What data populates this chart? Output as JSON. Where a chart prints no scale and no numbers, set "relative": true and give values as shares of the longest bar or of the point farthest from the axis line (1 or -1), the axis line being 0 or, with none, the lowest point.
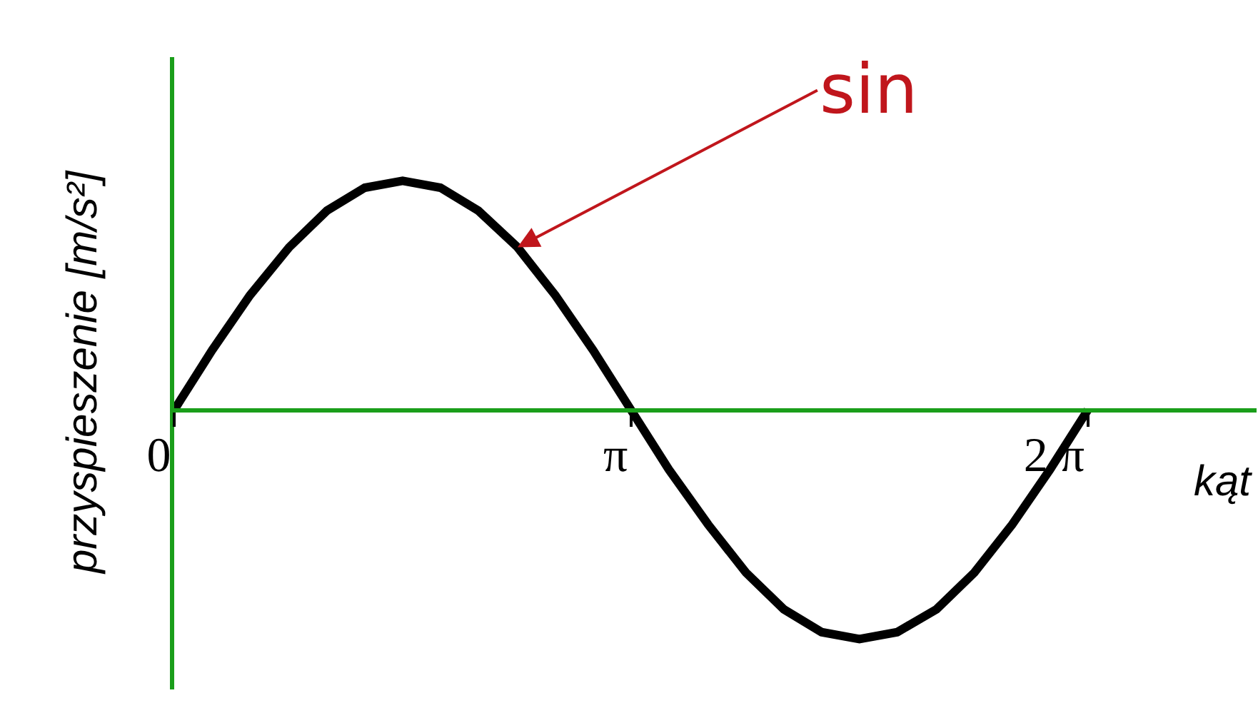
{
  "chart_data": {
    "type": "line",
    "relative": true,
    "xlabel": "kąt",
    "ylabel": "przyspieszenie [m/s²]",
    "x": [
      0,
      0.26,
      0.52,
      0.79,
      1.05,
      1.31,
      1.57,
      1.83,
      2.09,
      2.36,
      2.62,
      2.88,
      3.14,
      3.4,
      3.67,
      3.93,
      4.19,
      4.45,
      4.71,
      4.97,
      5.24,
      5.5,
      5.76,
      6.02,
      6.28
    ],
    "series": [
      {
        "color": "#000000",
        "values": [
          0,
          0.26,
          0.5,
          0.71,
          0.87,
          0.97,
          1,
          0.97,
          0.87,
          0.71,
          0.5,
          0.26,
          0,
          -0.26,
          -0.5,
          -0.71,
          -0.87,
          -0.97,
          -1,
          -0.97,
          -0.87,
          -0.71,
          -0.5,
          -0.26,
          0
        ]
      }
    ],
    "xlim": [
      0,
      7.44
    ],
    "xticks": [
      0,
      {
        "value": 3.14,
        "label": "π"
      },
      {
        "value": 6.28,
        "label": "2 π"
      }
    ],
    "annotations": [
      {
        "text": "sin",
        "x": 2.36,
        "y": 0.71
      }
    ],
    "legend": false,
    "marker": "none",
    "line_style": "solid"
  }
}
